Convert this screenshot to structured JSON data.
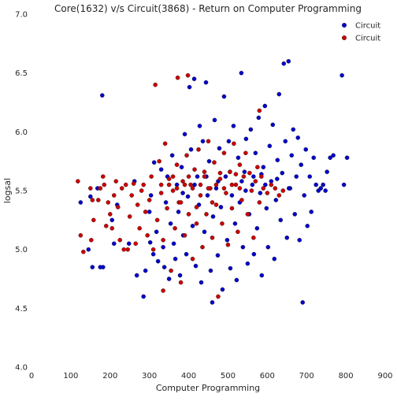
{
  "chart_data": {
    "type": "scatter",
    "title": "Core(1632) v/s Circuit(3868) - Return on Computer Programming",
    "xlabel": "Computer Programming",
    "ylabel": "logsal",
    "xlim": [
      0,
      900
    ],
    "ylim": [
      4.0,
      7.0
    ],
    "x_ticks": [
      0,
      100,
      200,
      300,
      400,
      500,
      600,
      700,
      800,
      900
    ],
    "y_ticks": [
      "4.0",
      "4.5",
      "5.0",
      "5.5",
      "6.0",
      "6.5",
      "7.0"
    ],
    "grid": false,
    "legend_position": "top-right",
    "series": [
      {
        "name": "Circuit",
        "color": "#0000cc",
        "points": [
          [
            180,
            6.31
          ],
          [
            125,
            5.4
          ],
          [
            150,
            5.45
          ],
          [
            155,
            4.85
          ],
          [
            175,
            4.85
          ],
          [
            182,
            4.85
          ],
          [
            145,
            5.0
          ],
          [
            168,
            5.52
          ],
          [
            205,
            5.25
          ],
          [
            210,
            5.05
          ],
          [
            218,
            5.38
          ],
          [
            248,
            5.05
          ],
          [
            268,
            4.78
          ],
          [
            262,
            5.58
          ],
          [
            285,
            4.6
          ],
          [
            290,
            4.82
          ],
          [
            302,
            5.06
          ],
          [
            300,
            5.32
          ],
          [
            304,
            5.46
          ],
          [
            312,
            5.74
          ],
          [
            310,
            4.96
          ],
          [
            318,
            5.15
          ],
          [
            322,
            4.9
          ],
          [
            330,
            5.68
          ],
          [
            335,
            5.02
          ],
          [
            338,
            4.85
          ],
          [
            342,
            5.4
          ],
          [
            346,
            5.62
          ],
          [
            350,
            4.75
          ],
          [
            354,
            5.22
          ],
          [
            358,
            5.8
          ],
          [
            362,
            5.05
          ],
          [
            366,
            4.92
          ],
          [
            370,
            5.55
          ],
          [
            374,
            5.32
          ],
          [
            378,
            4.78
          ],
          [
            382,
            5.7
          ],
          [
            386,
            5.12
          ],
          [
            390,
            5.98
          ],
          [
            394,
            4.96
          ],
          [
            398,
            5.45
          ],
          [
            402,
            6.38
          ],
          [
            406,
            5.85
          ],
          [
            410,
            5.2
          ],
          [
            414,
            6.45
          ],
          [
            418,
            4.86
          ],
          [
            422,
            5.62
          ],
          [
            426,
            5.38
          ],
          [
            428,
            6.05
          ],
          [
            432,
            4.72
          ],
          [
            436,
            5.92
          ],
          [
            440,
            5.15
          ],
          [
            444,
            6.42
          ],
          [
            448,
            5.46
          ],
          [
            452,
            5.75
          ],
          [
            456,
            4.82
          ],
          [
            460,
            4.55
          ],
          [
            462,
            5.28
          ],
          [
            466,
            6.1
          ],
          [
            470,
            5.52
          ],
          [
            474,
            4.95
          ],
          [
            478,
            5.86
          ],
          [
            482,
            5.36
          ],
          [
            486,
            4.66
          ],
          [
            490,
            6.3
          ],
          [
            494,
            5.62
          ],
          [
            498,
            5.08
          ],
          [
            502,
            5.92
          ],
          [
            506,
            4.84
          ],
          [
            510,
            5.46
          ],
          [
            514,
            6.05
          ],
          [
            518,
            5.22
          ],
          [
            522,
            4.74
          ],
          [
            526,
            5.78
          ],
          [
            530,
            5.4
          ],
          [
            534,
            6.5
          ],
          [
            538,
            5.02
          ],
          [
            542,
            5.66
          ],
          [
            546,
            5.94
          ],
          [
            550,
            4.88
          ],
          [
            554,
            5.3
          ],
          [
            558,
            6.02
          ],
          [
            562,
            5.55
          ],
          [
            566,
            4.96
          ],
          [
            570,
            5.82
          ],
          [
            574,
            5.18
          ],
          [
            578,
            6.12
          ],
          [
            582,
            5.48
          ],
          [
            586,
            4.78
          ],
          [
            590,
            5.7
          ],
          [
            594,
            6.22
          ],
          [
            598,
            5.35
          ],
          [
            602,
            5.02
          ],
          [
            606,
            5.88
          ],
          [
            610,
            5.58
          ],
          [
            614,
            6.06
          ],
          [
            618,
            4.92
          ],
          [
            622,
            5.42
          ],
          [
            626,
            5.76
          ],
          [
            630,
            6.32
          ],
          [
            634,
            5.25
          ],
          [
            638,
            5.65
          ],
          [
            642,
            6.58
          ],
          [
            646,
            5.92
          ],
          [
            650,
            5.1
          ],
          [
            654,
            6.6
          ],
          [
            658,
            5.52
          ],
          [
            662,
            5.8
          ],
          [
            666,
            6.02
          ],
          [
            670,
            5.3
          ],
          [
            674,
            5.62
          ],
          [
            678,
            5.95
          ],
          [
            682,
            5.08
          ],
          [
            686,
            5.72
          ],
          [
            690,
            4.55
          ],
          [
            694,
            5.46
          ],
          [
            698,
            5.85
          ],
          [
            702,
            5.2
          ],
          [
            708,
            5.62
          ],
          [
            712,
            5.32
          ],
          [
            718,
            5.78
          ],
          [
            724,
            5.55
          ],
          [
            730,
            5.5
          ],
          [
            736,
            5.52
          ],
          [
            742,
            5.55
          ],
          [
            748,
            5.5
          ],
          [
            768,
            5.8
          ],
          [
            790,
            6.48
          ],
          [
            795,
            5.55
          ],
          [
            803,
            5.78
          ],
          [
            760,
            5.78
          ],
          [
            752,
            5.66
          ],
          [
            385,
            5.48
          ],
          [
            415,
            5.55
          ],
          [
            445,
            5.62
          ],
          [
            475,
            5.58
          ],
          [
            505,
            5.66
          ],
          [
            535,
            5.58
          ],
          [
            565,
            5.62
          ],
          [
            595,
            5.55
          ],
          [
            625,
            5.6
          ],
          [
            655,
            5.52
          ],
          [
            585,
            5.64
          ],
          [
            545,
            5.5
          ]
        ]
      },
      {
        "name": "Circuit",
        "color": "#cc0000",
        "points": [
          [
            118,
            5.58
          ],
          [
            125,
            5.12
          ],
          [
            132,
            4.98
          ],
          [
            150,
            5.52
          ],
          [
            152,
            5.08
          ],
          [
            155,
            5.42
          ],
          [
            158,
            5.25
          ],
          [
            170,
            5.42
          ],
          [
            175,
            5.52
          ],
          [
            182,
            5.62
          ],
          [
            185,
            5.55
          ],
          [
            190,
            5.2
          ],
          [
            195,
            5.4
          ],
          [
            200,
            5.3
          ],
          [
            205,
            5.18
          ],
          [
            210,
            5.46
          ],
          [
            215,
            5.58
          ],
          [
            220,
            5.36
          ],
          [
            225,
            5.08
          ],
          [
            230,
            5.52
          ],
          [
            235,
            5.0
          ],
          [
            240,
            5.55
          ],
          [
            245,
            5.0
          ],
          [
            250,
            5.28
          ],
          [
            255,
            5.46
          ],
          [
            260,
            5.56
          ],
          [
            265,
            5.05
          ],
          [
            270,
            5.38
          ],
          [
            275,
            5.18
          ],
          [
            280,
            5.5
          ],
          [
            285,
            5.55
          ],
          [
            290,
            5.32
          ],
          [
            295,
            5.12
          ],
          [
            300,
            5.42
          ],
          [
            305,
            5.62
          ],
          [
            310,
            5.0
          ],
          [
            315,
            6.4
          ],
          [
            320,
            5.25
          ],
          [
            325,
            5.75
          ],
          [
            330,
            5.48
          ],
          [
            335,
            5.08
          ],
          [
            340,
            5.9
          ],
          [
            345,
            5.35
          ],
          [
            350,
            5.6
          ],
          [
            355,
            4.82
          ],
          [
            360,
            5.5
          ],
          [
            365,
            5.18
          ],
          [
            370,
            5.72
          ],
          [
            372,
            6.46
          ],
          [
            375,
            5.4
          ],
          [
            380,
            4.72
          ],
          [
            385,
            5.58
          ],
          [
            390,
            5.12
          ],
          [
            395,
            5.8
          ],
          [
            398,
            6.48
          ],
          [
            400,
            5.3
          ],
          [
            405,
            5.55
          ],
          [
            410,
            4.92
          ],
          [
            415,
            5.68
          ],
          [
            420,
            5.22
          ],
          [
            425,
            5.85
          ],
          [
            430,
            5.46
          ],
          [
            435,
            5.02
          ],
          [
            440,
            5.62
          ],
          [
            445,
            5.3
          ],
          [
            450,
            5.92
          ],
          [
            455,
            5.52
          ],
          [
            460,
            5.1
          ],
          [
            465,
            5.74
          ],
          [
            470,
            5.38
          ],
          [
            475,
            4.6
          ],
          [
            480,
            5.6
          ],
          [
            485,
            5.22
          ],
          [
            490,
            5.82
          ],
          [
            495,
            5.48
          ],
          [
            500,
            5.04
          ],
          [
            505,
            5.66
          ],
          [
            510,
            5.35
          ],
          [
            515,
            5.9
          ],
          [
            520,
            5.55
          ],
          [
            525,
            5.15
          ],
          [
            530,
            5.72
          ],
          [
            535,
            5.42
          ],
          [
            540,
            5.62
          ],
          [
            545,
            5.82
          ],
          [
            550,
            5.3
          ],
          [
            555,
            5.65
          ],
          [
            560,
            5.5
          ],
          [
            565,
            5.1
          ],
          [
            570,
            5.58
          ],
          [
            575,
            5.7
          ],
          [
            580,
            5.4
          ],
          [
            585,
            5.62
          ],
          [
            590,
            5.52
          ],
          [
            600,
            5.48
          ],
          [
            610,
            5.55
          ],
          [
            620,
            5.52
          ],
          [
            630,
            5.46
          ],
          [
            640,
            5.5
          ],
          [
            580,
            6.18
          ],
          [
            335,
            4.65
          ],
          [
            330,
            5.55
          ],
          [
            350,
            5.55
          ],
          [
            370,
            5.52
          ],
          [
            390,
            5.55
          ],
          [
            410,
            5.52
          ],
          [
            430,
            5.55
          ],
          [
            450,
            5.52
          ],
          [
            470,
            5.55
          ],
          [
            490,
            5.52
          ],
          [
            510,
            5.55
          ],
          [
            530,
            5.52
          ],
          [
            360,
            5.62
          ],
          [
            400,
            5.62
          ],
          [
            440,
            5.66
          ],
          [
            480,
            5.65
          ],
          [
            520,
            5.64
          ],
          [
            380,
            5.4
          ],
          [
            420,
            5.36
          ],
          [
            460,
            5.4
          ]
        ]
      }
    ]
  }
}
